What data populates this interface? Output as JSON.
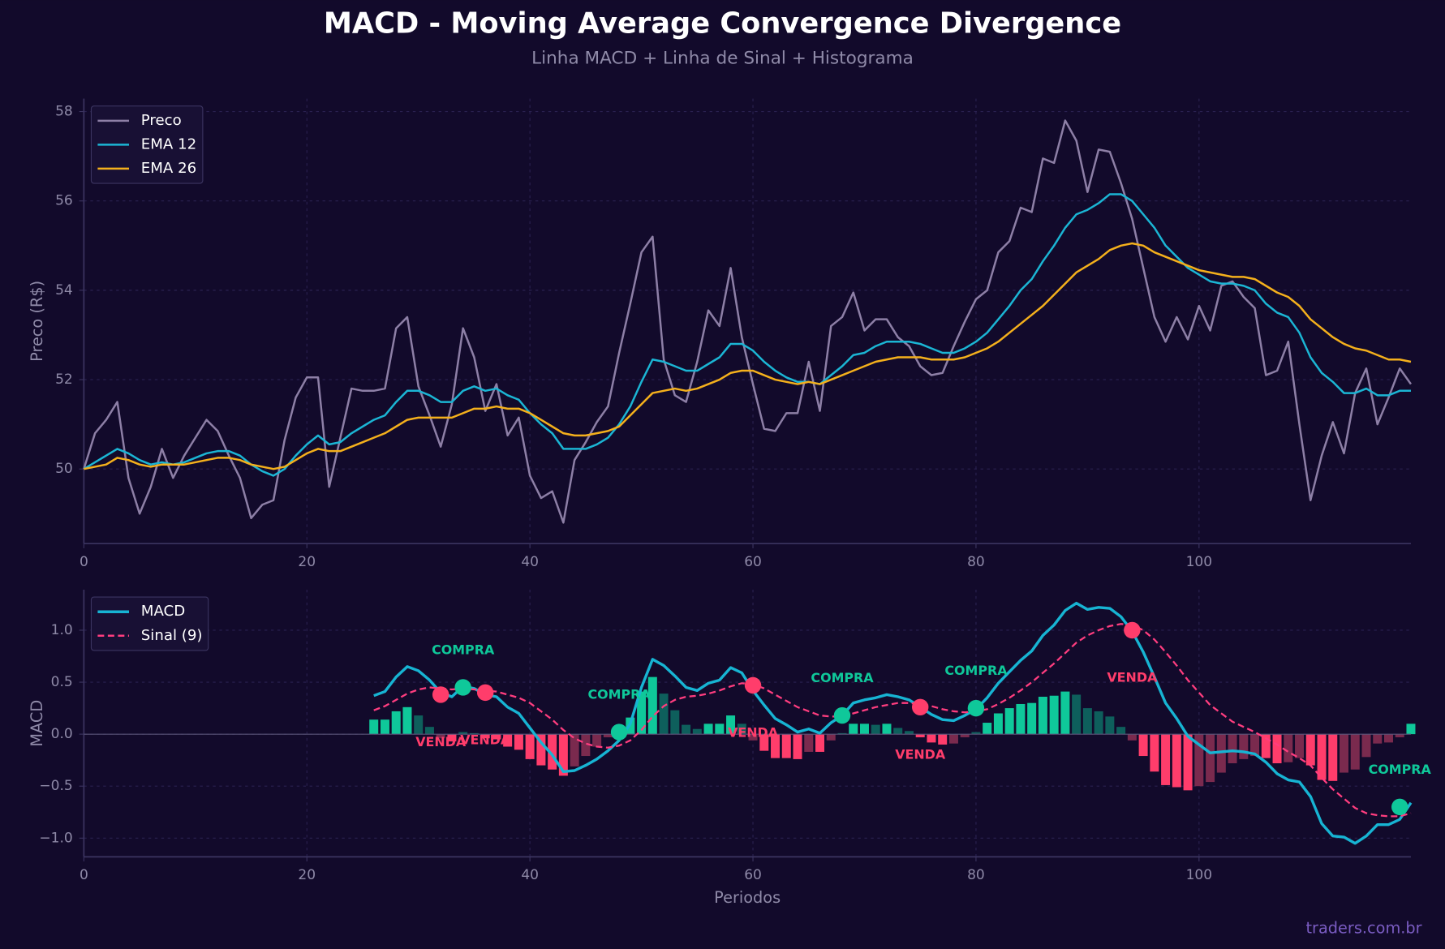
{
  "title": "MACD - Moving Average Convergence Divergence",
  "subtitle": "Linha MACD + Linha de Sinal + Histograma",
  "watermark": "traders.com.br",
  "chart_data": [
    {
      "type": "line",
      "ylabel": "Preco (R$)",
      "legend": "upper left",
      "grid": true,
      "xlim": [
        0,
        119
      ],
      "xticks": [
        0,
        20,
        40,
        60,
        80,
        100
      ],
      "ylim": [
        48.33,
        58.29
      ],
      "yticks": [
        50,
        52,
        54,
        56,
        58
      ],
      "x": [
        0,
        1,
        2,
        3,
        4,
        5,
        6,
        7,
        8,
        9,
        10,
        11,
        12,
        13,
        14,
        15,
        16,
        17,
        18,
        19,
        20,
        21,
        22,
        23,
        24,
        25,
        26,
        27,
        28,
        29,
        30,
        31,
        32,
        33,
        34,
        35,
        36,
        37,
        38,
        39,
        40,
        41,
        42,
        43,
        44,
        45,
        46,
        47,
        48,
        49,
        50,
        51,
        52,
        53,
        54,
        55,
        56,
        57,
        58,
        59,
        60,
        61,
        62,
        63,
        64,
        65,
        66,
        67,
        68,
        69,
        70,
        71,
        72,
        73,
        74,
        75,
        76,
        77,
        78,
        79,
        80,
        81,
        82,
        83,
        84,
        85,
        86,
        87,
        88,
        89,
        90,
        91,
        92,
        93,
        94,
        95,
        96,
        97,
        98,
        99,
        100,
        101,
        102,
        103,
        104,
        105,
        106,
        107,
        108,
        109,
        110,
        111,
        112,
        113,
        114,
        115,
        116,
        117,
        118,
        119
      ],
      "series": [
        {
          "name": "Preco",
          "color": "#8d7fa6",
          "values": [
            50.0,
            50.8,
            51.1,
            51.5,
            49.8,
            49.0,
            49.6,
            50.45,
            49.8,
            50.3,
            50.7,
            51.1,
            50.85,
            50.3,
            49.8,
            48.9,
            49.2,
            49.3,
            50.65,
            51.6,
            52.05,
            52.05,
            49.6,
            50.7,
            51.8,
            51.75,
            51.75,
            51.8,
            53.15,
            53.4,
            51.85,
            51.2,
            50.5,
            51.45,
            53.15,
            52.5,
            51.3,
            51.9,
            50.75,
            51.15,
            49.85,
            49.35,
            49.5,
            48.8,
            50.2,
            50.6,
            51.05,
            51.4,
            52.6,
            53.7,
            54.85,
            55.2,
            52.45,
            51.65,
            51.5,
            52.4,
            53.55,
            53.2,
            54.5,
            52.95,
            51.9,
            50.9,
            50.85,
            51.25,
            51.25,
            52.4,
            51.3,
            53.2,
            53.4,
            53.95,
            53.1,
            53.35,
            53.35,
            52.95,
            52.75,
            52.3,
            52.1,
            52.15,
            52.75,
            53.3,
            53.8,
            54.0,
            54.85,
            55.1,
            55.85,
            55.75,
            56.95,
            56.85,
            57.8,
            57.35,
            56.2,
            57.15,
            57.1,
            56.4,
            55.6,
            54.5,
            53.4,
            52.85,
            53.4,
            52.9,
            53.65,
            53.1,
            54.1,
            54.2,
            53.85,
            53.6,
            52.1,
            52.2,
            52.85,
            51.0,
            49.3,
            50.3,
            51.05,
            50.35,
            51.7,
            52.25,
            51.0,
            51.6,
            52.25,
            51.9
          ]
        },
        {
          "name": "EMA 12",
          "color": "#1bb5d4",
          "values": [
            50.0,
            50.15,
            50.3,
            50.45,
            50.35,
            50.2,
            50.1,
            50.15,
            50.1,
            50.15,
            50.25,
            50.35,
            50.4,
            50.4,
            50.3,
            50.1,
            49.95,
            49.85,
            50.0,
            50.3,
            50.55,
            50.75,
            50.55,
            50.6,
            50.8,
            50.95,
            51.1,
            51.2,
            51.5,
            51.75,
            51.75,
            51.65,
            51.5,
            51.5,
            51.75,
            51.85,
            51.75,
            51.8,
            51.65,
            51.55,
            51.25,
            51.0,
            50.8,
            50.45,
            50.45,
            50.45,
            50.55,
            50.7,
            51.0,
            51.4,
            51.95,
            52.45,
            52.4,
            52.3,
            52.2,
            52.2,
            52.35,
            52.5,
            52.8,
            52.8,
            52.65,
            52.4,
            52.2,
            52.05,
            51.95,
            51.95,
            51.9,
            52.1,
            52.3,
            52.55,
            52.6,
            52.75,
            52.85,
            52.85,
            52.85,
            52.8,
            52.7,
            52.6,
            52.6,
            52.7,
            52.85,
            53.05,
            53.35,
            53.65,
            54.0,
            54.25,
            54.65,
            55.0,
            55.4,
            55.7,
            55.8,
            55.95,
            56.15,
            56.15,
            56.0,
            55.7,
            55.4,
            55.0,
            54.75,
            54.5,
            54.35,
            54.2,
            54.15,
            54.15,
            54.1,
            54.0,
            53.7,
            53.5,
            53.4,
            53.05,
            52.5,
            52.15,
            51.95,
            51.7,
            51.7,
            51.8,
            51.65,
            51.65,
            51.75,
            51.75
          ]
        },
        {
          "name": "EMA 26",
          "color": "#f4b01c",
          "values": [
            50.0,
            50.05,
            50.1,
            50.25,
            50.2,
            50.1,
            50.05,
            50.1,
            50.1,
            50.1,
            50.15,
            50.2,
            50.25,
            50.25,
            50.2,
            50.1,
            50.05,
            50.0,
            50.05,
            50.2,
            50.35,
            50.45,
            50.4,
            50.4,
            50.5,
            50.6,
            50.7,
            50.8,
            50.95,
            51.1,
            51.15,
            51.15,
            51.15,
            51.15,
            51.25,
            51.35,
            51.35,
            51.4,
            51.35,
            51.35,
            51.25,
            51.1,
            50.95,
            50.8,
            50.75,
            50.75,
            50.8,
            50.85,
            50.95,
            51.2,
            51.45,
            51.7,
            51.75,
            51.8,
            51.75,
            51.8,
            51.9,
            52.0,
            52.15,
            52.2,
            52.2,
            52.1,
            52.0,
            51.95,
            51.9,
            51.95,
            51.9,
            52.0,
            52.1,
            52.2,
            52.3,
            52.4,
            52.45,
            52.5,
            52.5,
            52.5,
            52.45,
            52.45,
            52.45,
            52.5,
            52.6,
            52.7,
            52.85,
            53.05,
            53.25,
            53.45,
            53.65,
            53.9,
            54.15,
            54.4,
            54.55,
            54.7,
            54.9,
            55.0,
            55.05,
            55.0,
            54.85,
            54.75,
            54.65,
            54.55,
            54.45,
            54.4,
            54.35,
            54.3,
            54.3,
            54.25,
            54.1,
            53.95,
            53.85,
            53.65,
            53.35,
            53.15,
            52.95,
            52.8,
            52.7,
            52.65,
            52.55,
            52.45,
            52.45,
            52.4
          ]
        }
      ]
    },
    {
      "type": "macd",
      "ylabel": "MACD",
      "xlabel": "Periodos",
      "legend": "upper left",
      "grid": true,
      "xlim": [
        0,
        119
      ],
      "xticks": [
        0,
        20,
        40,
        60,
        80,
        100
      ],
      "ylim": [
        -1.18,
        1.39
      ],
      "yticks": [
        {
          "value": -1.0,
          "label": "−1.0"
        },
        {
          "value": -0.5,
          "label": "−0.5"
        },
        {
          "value": 0.0,
          "label": "0.0"
        },
        {
          "value": 0.5,
          "label": "0.5"
        },
        {
          "value": 1.0,
          "label": "1.0"
        }
      ],
      "x": [
        0,
        1,
        2,
        3,
        4,
        5,
        6,
        7,
        8,
        9,
        10,
        11,
        12,
        13,
        14,
        15,
        16,
        17,
        18,
        19,
        20,
        21,
        22,
        23,
        24,
        25,
        26,
        27,
        28,
        29,
        30,
        31,
        32,
        33,
        34,
        35,
        36,
        37,
        38,
        39,
        40,
        41,
        42,
        43,
        44,
        45,
        46,
        47,
        48,
        49,
        50,
        51,
        52,
        53,
        54,
        55,
        56,
        57,
        58,
        59,
        60,
        61,
        62,
        63,
        64,
        65,
        66,
        67,
        68,
        69,
        70,
        71,
        72,
        73,
        74,
        75,
        76,
        77,
        78,
        79,
        80,
        81,
        82,
        83,
        84,
        85,
        86,
        87,
        88,
        89,
        90,
        91,
        92,
        93,
        94,
        95,
        96,
        97,
        98,
        99,
        100,
        101,
        102,
        103,
        104,
        105,
        106,
        107,
        108,
        109,
        110,
        111,
        112,
        113,
        114,
        115,
        116,
        117,
        118,
        119
      ],
      "series": [
        {
          "name": "MACD",
          "style": "line",
          "color": "#17b4d3",
          "values": [
            null,
            null,
            null,
            null,
            null,
            null,
            null,
            null,
            null,
            null,
            null,
            null,
            null,
            null,
            null,
            null,
            null,
            null,
            null,
            null,
            null,
            null,
            null,
            null,
            null,
            null,
            0.37,
            0.41,
            0.55,
            0.65,
            0.61,
            0.52,
            0.4,
            0.36,
            0.46,
            0.44,
            0.38,
            0.36,
            0.26,
            0.2,
            0.06,
            -0.08,
            -0.2,
            -0.36,
            -0.35,
            -0.3,
            -0.24,
            -0.16,
            -0.06,
            0.1,
            0.45,
            0.72,
            0.66,
            0.56,
            0.45,
            0.42,
            0.49,
            0.52,
            0.64,
            0.59,
            0.42,
            0.28,
            0.15,
            0.09,
            0.02,
            0.05,
            0.01,
            0.11,
            0.18,
            0.3,
            0.33,
            0.35,
            0.38,
            0.36,
            0.33,
            0.26,
            0.19,
            0.14,
            0.13,
            0.18,
            0.24,
            0.35,
            0.49,
            0.6,
            0.71,
            0.8,
            0.95,
            1.05,
            1.19,
            1.26,
            1.2,
            1.22,
            1.21,
            1.13,
            0.99,
            0.79,
            0.55,
            0.3,
            0.15,
            -0.02,
            -0.1,
            -0.18,
            -0.17,
            -0.16,
            -0.17,
            -0.19,
            -0.27,
            -0.38,
            -0.44,
            -0.46,
            -0.6,
            -0.86,
            -0.98,
            -0.99,
            -1.05,
            -0.98,
            -0.87,
            -0.87,
            -0.82,
            -0.66
          ]
        },
        {
          "name": "Sinal (9)",
          "style": "dashed",
          "color": "#ff3d7f",
          "values": [
            null,
            null,
            null,
            null,
            null,
            null,
            null,
            null,
            null,
            null,
            null,
            null,
            null,
            null,
            null,
            null,
            null,
            null,
            null,
            null,
            null,
            null,
            null,
            null,
            null,
            null,
            0.23,
            0.27,
            0.33,
            0.39,
            0.43,
            0.45,
            0.44,
            0.43,
            0.44,
            0.43,
            0.42,
            0.41,
            0.38,
            0.35,
            0.3,
            0.22,
            0.14,
            0.04,
            -0.04,
            -0.09,
            -0.12,
            -0.13,
            -0.11,
            -0.06,
            0.04,
            0.17,
            0.27,
            0.33,
            0.36,
            0.37,
            0.39,
            0.42,
            0.46,
            0.49,
            0.48,
            0.44,
            0.38,
            0.32,
            0.26,
            0.22,
            0.18,
            0.17,
            0.17,
            0.2,
            0.23,
            0.26,
            0.28,
            0.3,
            0.3,
            0.29,
            0.27,
            0.24,
            0.22,
            0.21,
            0.22,
            0.24,
            0.29,
            0.35,
            0.42,
            0.5,
            0.59,
            0.68,
            0.78,
            0.88,
            0.95,
            1.0,
            1.04,
            1.06,
            1.05,
            1.0,
            0.91,
            0.79,
            0.66,
            0.52,
            0.4,
            0.28,
            0.2,
            0.12,
            0.07,
            0.02,
            -0.04,
            -0.1,
            -0.17,
            -0.23,
            -0.3,
            -0.42,
            -0.53,
            -0.62,
            -0.71,
            -0.76,
            -0.78,
            -0.79,
            -0.79,
            -0.76
          ]
        },
        {
          "style": "histogram",
          "positive_color": "#0fc89a",
          "positive_dim_color": "#0e5f5c",
          "negative_color": "#ff3d6b",
          "negative_dim_color": "#7a2a4e",
          "values": [
            null,
            null,
            null,
            null,
            null,
            null,
            null,
            null,
            null,
            null,
            null,
            null,
            null,
            null,
            null,
            null,
            null,
            null,
            null,
            null,
            null,
            null,
            null,
            null,
            null,
            null,
            0.14,
            0.14,
            0.22,
            0.26,
            0.18,
            0.07,
            -0.04,
            -0.07,
            0.02,
            0.01,
            -0.04,
            -0.05,
            -0.12,
            -0.15,
            -0.24,
            -0.3,
            -0.34,
            -0.4,
            -0.31,
            -0.21,
            -0.12,
            -0.03,
            0.05,
            0.16,
            0.41,
            0.55,
            0.39,
            0.23,
            0.09,
            0.05,
            0.1,
            0.1,
            0.18,
            0.1,
            -0.06,
            -0.16,
            -0.23,
            -0.23,
            -0.24,
            -0.17,
            -0.17,
            -0.06,
            0.01,
            0.1,
            0.1,
            0.09,
            0.1,
            0.06,
            0.03,
            -0.03,
            -0.08,
            -0.1,
            -0.09,
            -0.03,
            0.02,
            0.11,
            0.2,
            0.25,
            0.29,
            0.3,
            0.36,
            0.37,
            0.41,
            0.38,
            0.25,
            0.22,
            0.17,
            0.07,
            -0.06,
            -0.21,
            -0.36,
            -0.49,
            -0.51,
            -0.54,
            -0.5,
            -0.46,
            -0.37,
            -0.28,
            -0.24,
            -0.21,
            -0.23,
            -0.28,
            -0.27,
            -0.23,
            -0.3,
            -0.44,
            -0.45,
            -0.37,
            -0.34,
            -0.22,
            -0.09,
            -0.08,
            -0.03,
            0.1
          ]
        }
      ],
      "annotations": [
        {
          "x": 32,
          "y": 0.38,
          "label": "VENDA",
          "color": "#ff3d6b"
        },
        {
          "x": 34,
          "y": 0.45,
          "label": "COMPRA",
          "color": "#0fc89a"
        },
        {
          "x": 36,
          "y": 0.4,
          "label": "VENDA",
          "color": "#ff3d6b"
        },
        {
          "x": 48,
          "y": 0.02,
          "label": "COMPRA",
          "color": "#0fc89a"
        },
        {
          "x": 60,
          "y": 0.47,
          "label": "VENDA",
          "color": "#ff3d6b"
        },
        {
          "x": 68,
          "y": 0.18,
          "label": "COMPRA",
          "color": "#0fc89a"
        },
        {
          "x": 75,
          "y": 0.26,
          "label": "VENDA",
          "color": "#ff3d6b"
        },
        {
          "x": 80,
          "y": 0.25,
          "label": "COMPRA",
          "color": "#0fc89a"
        },
        {
          "x": 94,
          "y": 1.0,
          "label": "VENDA",
          "color": "#ff3d6b"
        },
        {
          "x": 118,
          "y": -0.7,
          "label": "COMPRA",
          "color": "#0fc89a"
        }
      ]
    }
  ]
}
